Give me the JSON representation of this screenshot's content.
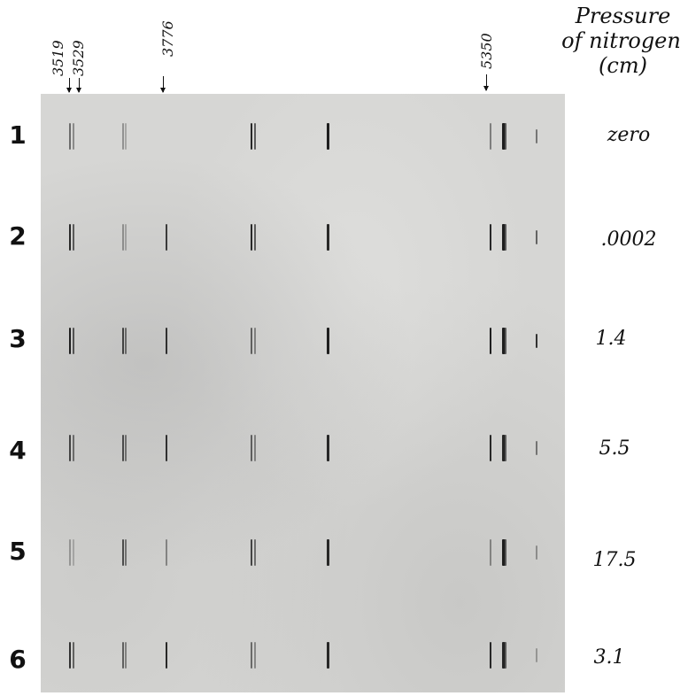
{
  "wavelength_labels": [
    "3519",
    "3529",
    "3776",
    "5350"
  ],
  "column_header": {
    "line1": "Pressure",
    "line2": "of nitrogen",
    "line3": "(cm)"
  },
  "rows": [
    {
      "number": "1",
      "pressure": "zero"
    },
    {
      "number": "2",
      "pressure": ".0002"
    },
    {
      "number": "3",
      "pressure": "1.4"
    },
    {
      "number": "4",
      "pressure": "5.5"
    },
    {
      "number": "5",
      "pressure": "17.5"
    },
    {
      "number": "6",
      "pressure": "3.1"
    }
  ],
  "spectral_line_intensity": [
    [
      0.55,
      0.35,
      0.0,
      0.9,
      0.95,
      0.45,
      0.95,
      0.5
    ],
    [
      0.9,
      0.35,
      0.8,
      0.9,
      0.9,
      0.9,
      0.95,
      0.6
    ],
    [
      0.95,
      0.75,
      0.85,
      0.6,
      0.95,
      0.95,
      0.95,
      0.85
    ],
    [
      0.75,
      0.7,
      0.85,
      0.6,
      0.9,
      0.9,
      0.9,
      0.5
    ],
    [
      0.3,
      0.7,
      0.4,
      0.75,
      0.9,
      0.4,
      0.95,
      0.35
    ],
    [
      0.85,
      0.6,
      0.9,
      0.55,
      0.9,
      0.9,
      0.9,
      0.3
    ]
  ],
  "colors": {
    "plate": "#d6d6d4",
    "ink": "#111111"
  }
}
